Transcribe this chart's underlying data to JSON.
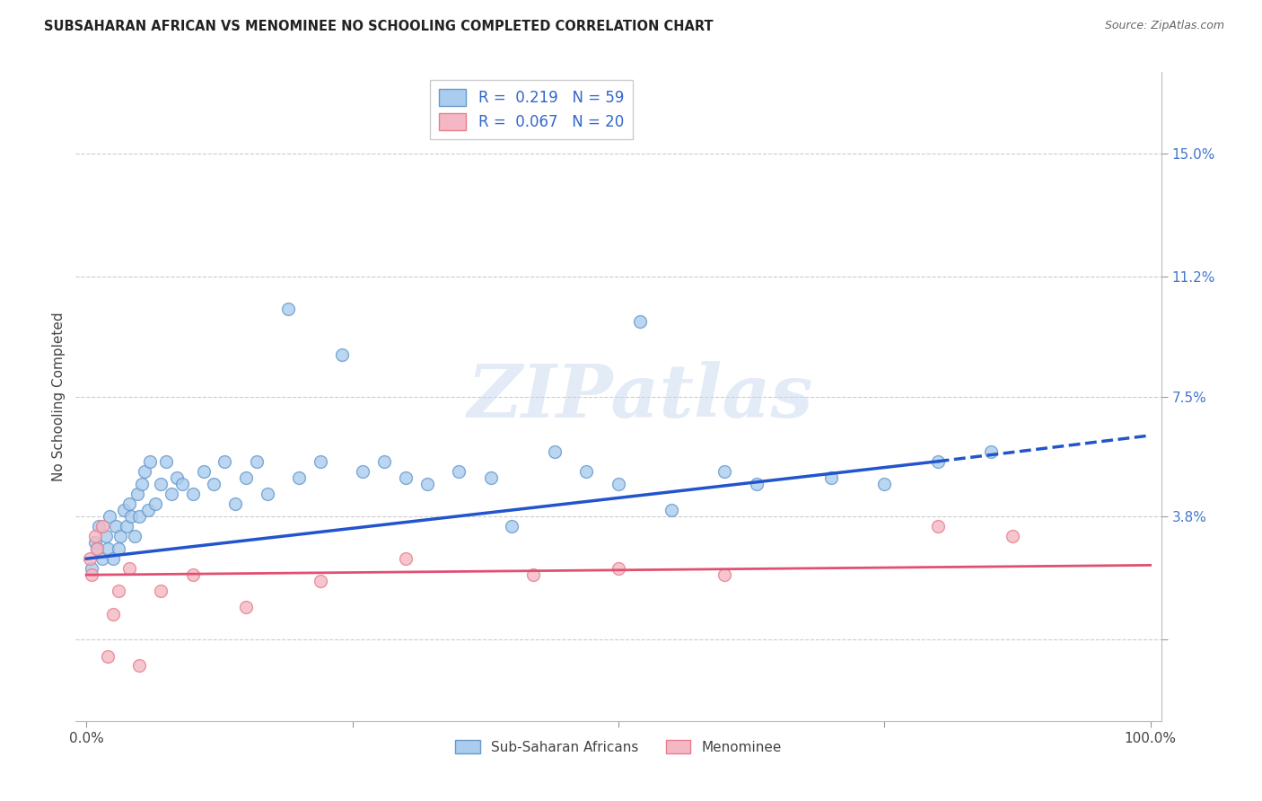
{
  "title": "SUBSAHARAN AFRICAN VS MENOMINEE NO SCHOOLING COMPLETED CORRELATION CHART",
  "source": "Source: ZipAtlas.com",
  "ylabel": "No Schooling Completed",
  "xlim": [
    -1,
    101
  ],
  "ylim": [
    -2.5,
    17.5
  ],
  "yticks": [
    0,
    3.8,
    7.5,
    11.2,
    15.0
  ],
  "ytick_labels": [
    "",
    "3.8%",
    "7.5%",
    "11.2%",
    "15.0%"
  ],
  "xticks": [
    0,
    25,
    50,
    75,
    100
  ],
  "xtick_labels": [
    "0.0%",
    "",
    "",
    "",
    "100.0%"
  ],
  "grid_color": "#cccccc",
  "background_color": "#ffffff",
  "blue_scatter_face": "#aaccee",
  "blue_scatter_edge": "#6699cc",
  "pink_scatter_face": "#f4b8c4",
  "pink_scatter_edge": "#e87d8c",
  "trend_blue": "#2255cc",
  "trend_pink": "#e05070",
  "legend_line1": "R =  0.219   N = 59",
  "legend_line2": "R =  0.067   N = 20",
  "label_blue": "Sub-Saharan Africans",
  "label_pink": "Menominee",
  "blue_x": [
    0.5,
    0.8,
    1.0,
    1.2,
    1.5,
    1.8,
    2.0,
    2.2,
    2.5,
    2.8,
    3.0,
    3.2,
    3.5,
    3.8,
    4.0,
    4.2,
    4.5,
    4.8,
    5.0,
    5.2,
    5.5,
    5.8,
    6.0,
    6.5,
    7.0,
    7.5,
    8.0,
    8.5,
    9.0,
    10.0,
    11.0,
    12.0,
    13.0,
    14.0,
    15.0,
    16.0,
    17.0,
    19.0,
    20.0,
    22.0,
    24.0,
    26.0,
    28.0,
    30.0,
    32.0,
    35.0,
    38.0,
    40.0,
    44.0,
    47.0,
    50.0,
    52.0,
    55.0,
    60.0,
    63.0,
    70.0,
    75.0,
    80.0,
    85.0
  ],
  "blue_y": [
    2.2,
    3.0,
    2.8,
    3.5,
    2.5,
    3.2,
    2.8,
    3.8,
    2.5,
    3.5,
    2.8,
    3.2,
    4.0,
    3.5,
    4.2,
    3.8,
    3.2,
    4.5,
    3.8,
    4.8,
    5.2,
    4.0,
    5.5,
    4.2,
    4.8,
    5.5,
    4.5,
    5.0,
    4.8,
    4.5,
    5.2,
    4.8,
    5.5,
    4.2,
    5.0,
    5.5,
    4.5,
    10.2,
    5.0,
    5.5,
    8.8,
    5.2,
    5.5,
    5.0,
    4.8,
    5.2,
    5.0,
    3.5,
    5.8,
    5.2,
    4.8,
    9.8,
    4.0,
    5.2,
    4.8,
    5.0,
    4.8,
    5.5,
    5.8
  ],
  "pink_x": [
    0.3,
    0.5,
    0.8,
    1.0,
    1.5,
    2.0,
    2.5,
    3.0,
    4.0,
    5.0,
    7.0,
    10.0,
    15.0,
    22.0,
    30.0,
    42.0,
    50.0,
    60.0,
    80.0,
    87.0
  ],
  "pink_y": [
    2.5,
    2.0,
    3.2,
    2.8,
    3.5,
    -0.5,
    0.8,
    1.5,
    2.2,
    -0.8,
    1.5,
    2.0,
    1.0,
    1.8,
    2.5,
    2.0,
    2.2,
    2.0,
    3.5,
    3.2
  ],
  "blue_trend_start_x": 0,
  "blue_trend_start_y": 2.5,
  "blue_trend_end_solid_x": 80,
  "blue_trend_end_solid_y": 5.5,
  "blue_trend_end_dash_x": 100,
  "blue_trend_end_dash_y": 6.3,
  "pink_trend_start_x": 0,
  "pink_trend_start_y": 2.0,
  "pink_trend_end_x": 100,
  "pink_trend_end_y": 2.3,
  "watermark_text": "ZIPatlas",
  "marker_size": 100
}
